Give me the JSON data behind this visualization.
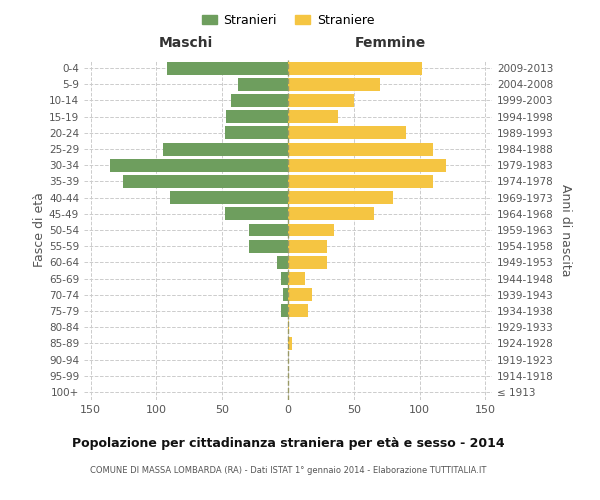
{
  "age_groups": [
    "100+",
    "95-99",
    "90-94",
    "85-89",
    "80-84",
    "75-79",
    "70-74",
    "65-69",
    "60-64",
    "55-59",
    "50-54",
    "45-49",
    "40-44",
    "35-39",
    "30-34",
    "25-29",
    "20-24",
    "15-19",
    "10-14",
    "5-9",
    "0-4"
  ],
  "birth_years": [
    "≤ 1913",
    "1914-1918",
    "1919-1923",
    "1924-1928",
    "1929-1933",
    "1934-1938",
    "1939-1943",
    "1944-1948",
    "1949-1953",
    "1954-1958",
    "1959-1963",
    "1964-1968",
    "1969-1973",
    "1974-1978",
    "1979-1983",
    "1984-1988",
    "1989-1993",
    "1994-1998",
    "1999-2003",
    "2004-2008",
    "2009-2013"
  ],
  "maschi": [
    0,
    0,
    0,
    0,
    0,
    5,
    4,
    5,
    8,
    30,
    30,
    48,
    90,
    125,
    135,
    95,
    48,
    47,
    43,
    38,
    92
  ],
  "femmine": [
    0,
    0,
    0,
    3,
    1,
    15,
    18,
    13,
    30,
    30,
    35,
    65,
    80,
    110,
    120,
    110,
    90,
    38,
    50,
    70,
    102
  ],
  "color_maschi": "#6e9e5e",
  "color_femmine": "#f5c542",
  "title": "Popolazione per cittadinanza straniera per età e sesso - 2014",
  "subtitle": "COMUNE DI MASSA LOMBARDA (RA) - Dati ISTAT 1° gennaio 2014 - Elaborazione TUTTITALIA.IT",
  "ylabel_left": "Fasce di età",
  "ylabel_right": "Anni di nascita",
  "xlabel_left": "Maschi",
  "xlabel_right": "Femmine",
  "legend_maschi": "Stranieri",
  "legend_femmine": "Straniere",
  "xlim": 155,
  "background_color": "#ffffff",
  "grid_color": "#cccccc",
  "text_color": "#555555"
}
